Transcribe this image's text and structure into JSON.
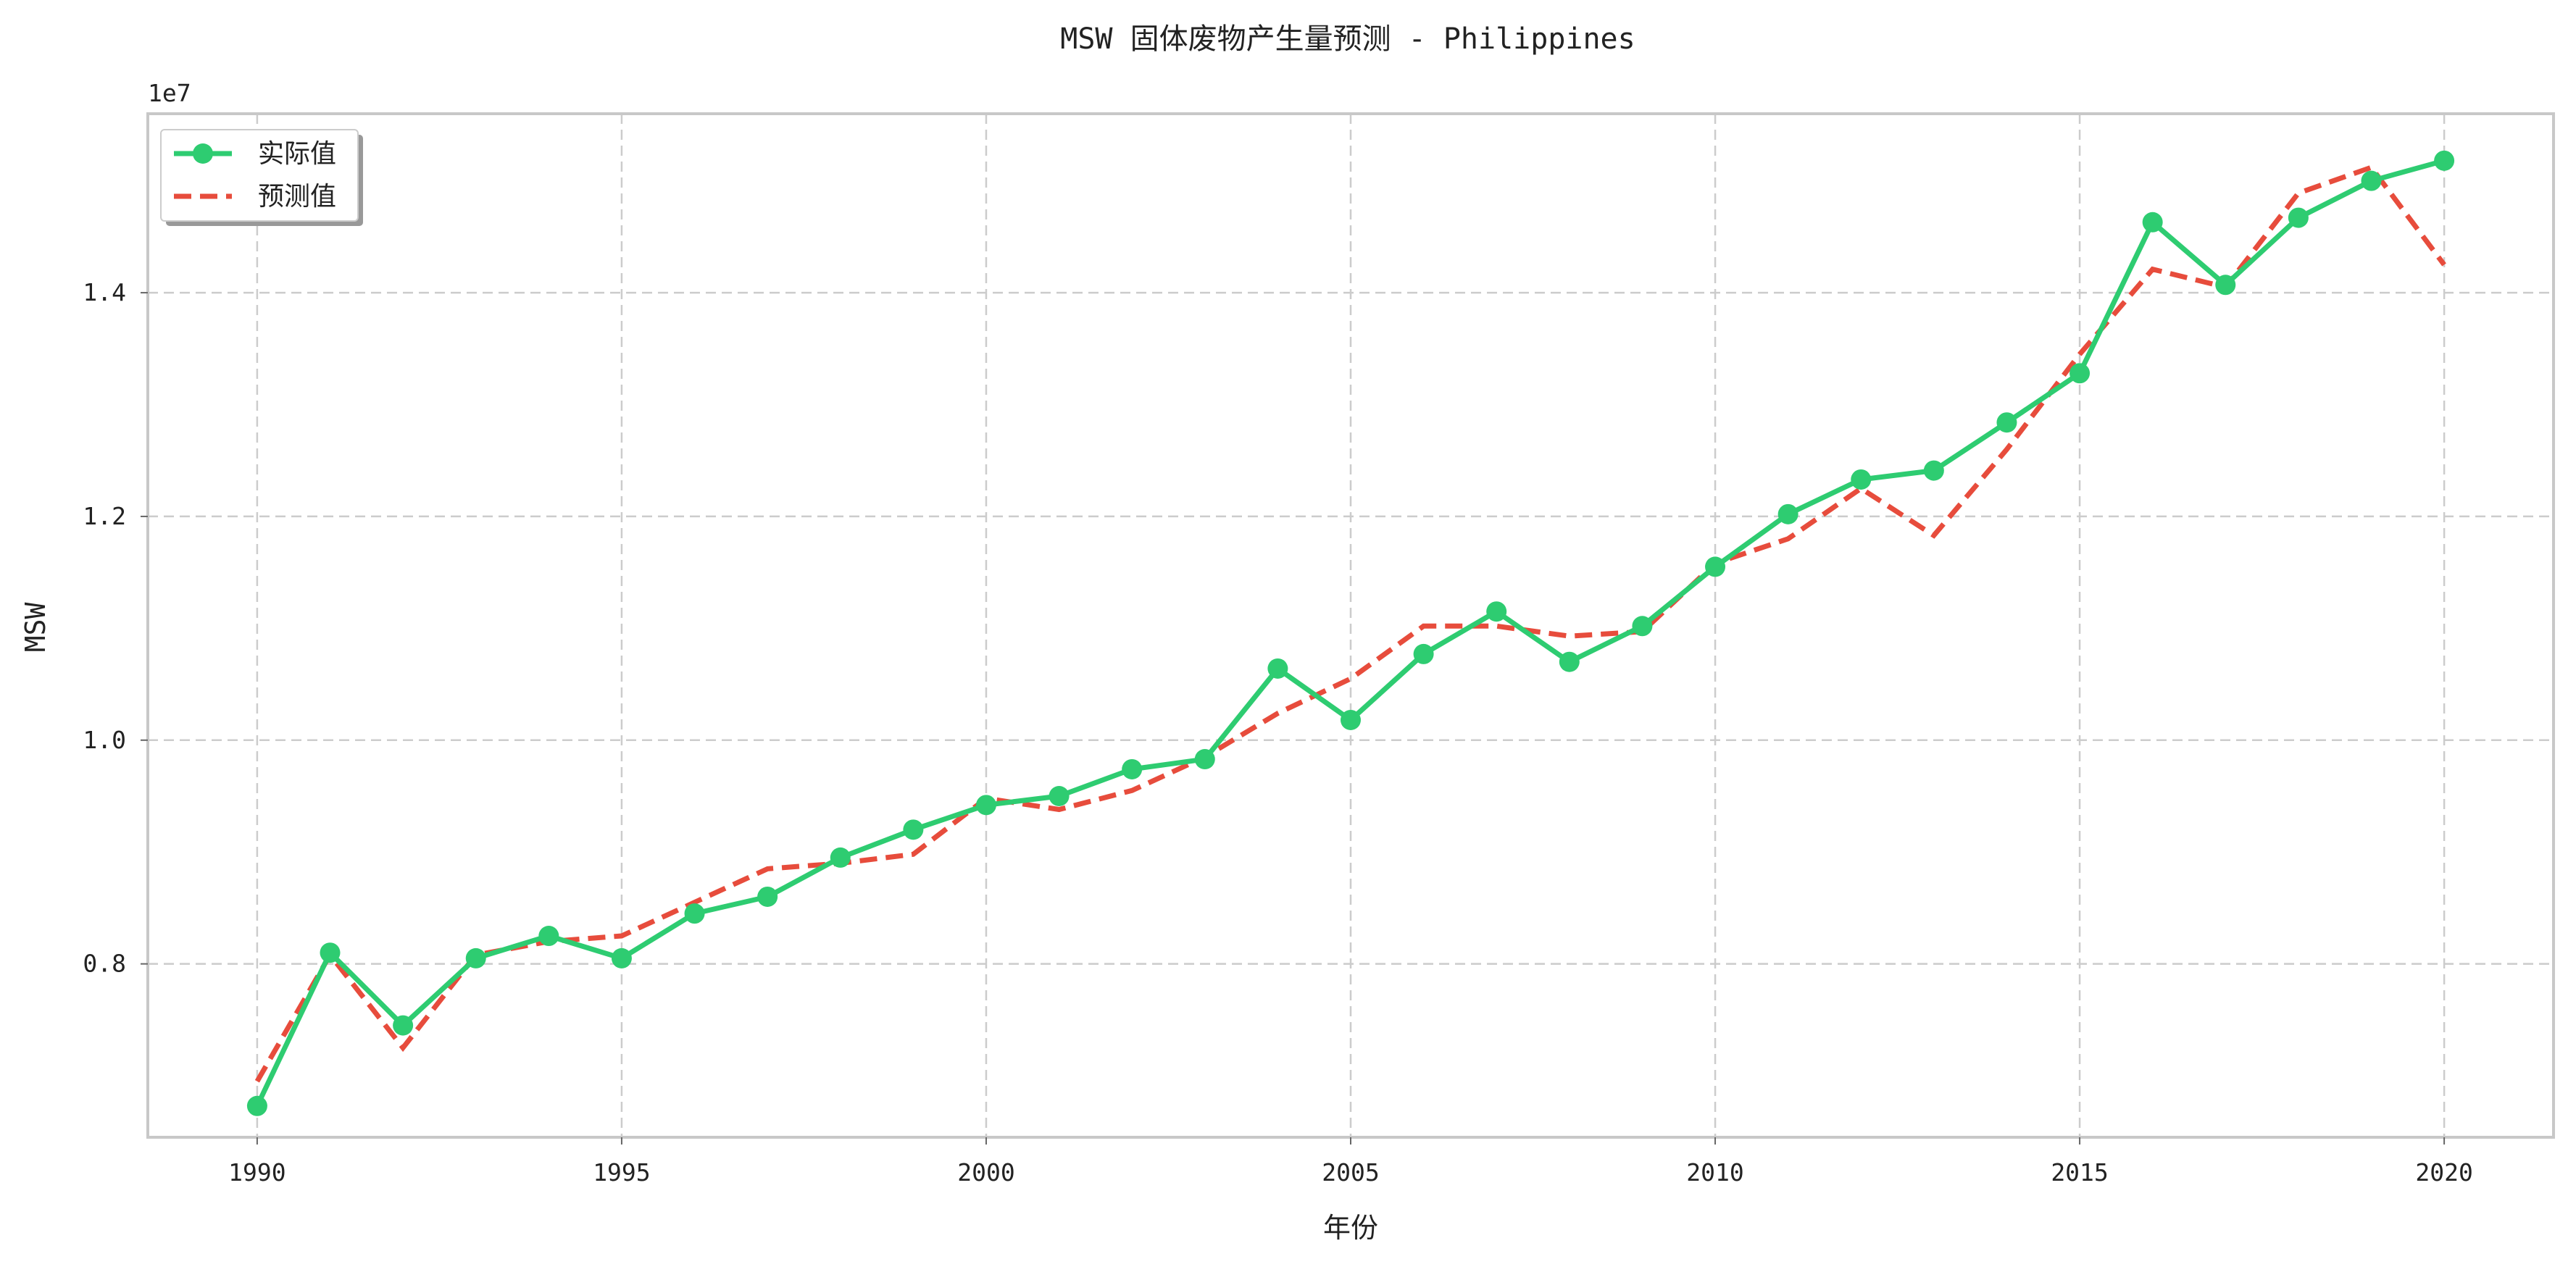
{
  "chart_data": {
    "type": "line",
    "title": "MSW 固体废物产生量预测 - Philippines",
    "xlabel": "年份",
    "ylabel": "MSW",
    "y_offset_label": "1e7",
    "xlim": [
      1988.5,
      2021.5
    ],
    "ylim": [
      6.45,
      15.6
    ],
    "x_ticks": [
      1990,
      1995,
      2000,
      2005,
      2010,
      2015,
      2020
    ],
    "y_ticks": [
      0.8,
      1.0,
      1.2,
      1.4
    ],
    "y_tick_scale": 10,
    "grid": true,
    "legend_position": "top-left",
    "x": [
      1990,
      1991,
      1992,
      1993,
      1994,
      1995,
      1996,
      1997,
      1998,
      1999,
      2000,
      2001,
      2002,
      2003,
      2004,
      2005,
      2006,
      2007,
      2008,
      2009,
      2010,
      2011,
      2012,
      2013,
      2014,
      2015,
      2016,
      2017,
      2018,
      2019,
      2020
    ],
    "series": [
      {
        "name": "实际值",
        "color": "#2ecc71",
        "style": "solid-marker",
        "values": [
          6.73,
          8.1,
          7.45,
          8.05,
          8.25,
          8.05,
          8.45,
          8.6,
          8.95,
          9.2,
          9.42,
          9.5,
          9.74,
          9.83,
          10.64,
          10.18,
          10.77,
          11.15,
          10.7,
          11.02,
          11.55,
          12.02,
          12.33,
          12.41,
          12.84,
          13.28,
          14.63,
          14.07,
          14.67,
          15.0,
          15.18
        ]
      },
      {
        "name": "预测值",
        "color": "#e74c3c",
        "style": "dashed",
        "values": [
          6.95,
          8.08,
          7.25,
          8.08,
          8.2,
          8.25,
          8.55,
          8.85,
          8.9,
          8.98,
          9.48,
          9.38,
          9.55,
          9.85,
          10.24,
          10.55,
          11.02,
          11.02,
          10.93,
          10.97,
          11.58,
          11.8,
          12.25,
          11.83,
          12.6,
          13.45,
          14.21,
          14.05,
          14.89,
          15.12,
          14.25
        ]
      }
    ]
  }
}
